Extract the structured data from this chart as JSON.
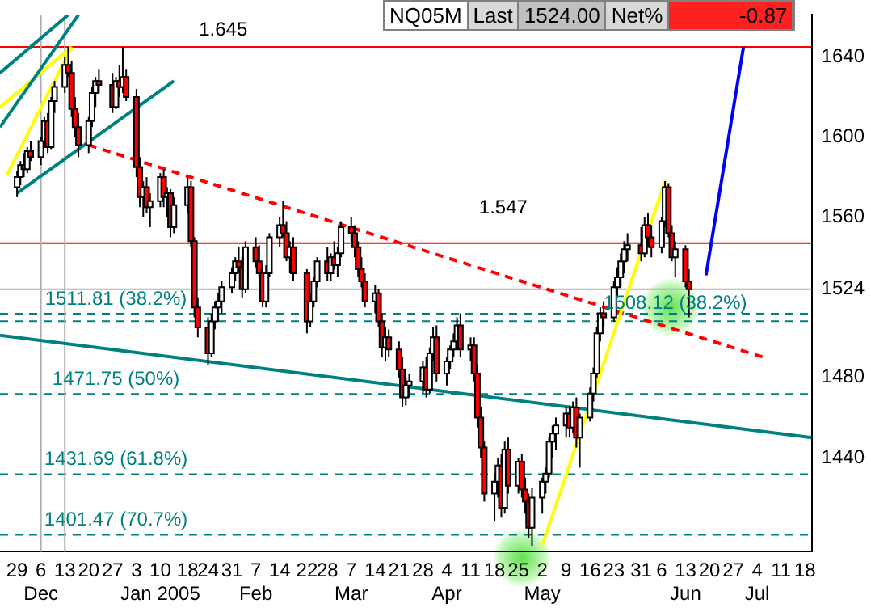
{
  "chart_data": {
    "type": "candlestick",
    "x": [
      "2004-11-29",
      "2004-11-30",
      "2004-12-01",
      "2004-12-02",
      "2004-12-03",
      "2004-12-06",
      "2004-12-07",
      "2004-12-08",
      "2004-12-09",
      "2004-12-10",
      "2004-12-13",
      "2004-12-14",
      "2004-12-15",
      "2004-12-16",
      "2004-12-17",
      "2004-12-20",
      "2004-12-21",
      "2004-12-22",
      "2004-12-23",
      "2004-12-27",
      "2004-12-28",
      "2004-12-29",
      "2004-12-30",
      "2004-12-31",
      "2005-01-03",
      "2005-01-04",
      "2005-01-05",
      "2005-01-06",
      "2005-01-07",
      "2005-01-10",
      "2005-01-11",
      "2005-01-12",
      "2005-01-13",
      "2005-01-14",
      "2005-01-18",
      "2005-01-19",
      "2005-01-20",
      "2005-01-21",
      "2005-01-24",
      "2005-01-25",
      "2005-01-26",
      "2005-01-27",
      "2005-01-28",
      "2005-01-31",
      "2005-02-01",
      "2005-02-02",
      "2005-02-03",
      "2005-02-04",
      "2005-02-07",
      "2005-02-08",
      "2005-02-09",
      "2005-02-10",
      "2005-02-11",
      "2005-02-14",
      "2005-02-15",
      "2005-02-16",
      "2005-02-17",
      "2005-02-18",
      "2005-02-22",
      "2005-02-23",
      "2005-02-24",
      "2005-02-25",
      "2005-02-28",
      "2005-03-01",
      "2005-03-02",
      "2005-03-03",
      "2005-03-04",
      "2005-03-07",
      "2005-03-08",
      "2005-03-09",
      "2005-03-10",
      "2005-03-11",
      "2005-03-14",
      "2005-03-15",
      "2005-03-16",
      "2005-03-17",
      "2005-03-18",
      "2005-03-21",
      "2005-03-22",
      "2005-03-23",
      "2005-03-24",
      "2005-03-28",
      "2005-03-29",
      "2005-03-30",
      "2005-03-31",
      "2005-04-01",
      "2005-04-04",
      "2005-04-05",
      "2005-04-06",
      "2005-04-07",
      "2005-04-08",
      "2005-04-11",
      "2005-04-12",
      "2005-04-13",
      "2005-04-14",
      "2005-04-15",
      "2005-04-18",
      "2005-04-19",
      "2005-04-20",
      "2005-04-21",
      "2005-04-22",
      "2005-04-25",
      "2005-04-26",
      "2005-04-27",
      "2005-04-28",
      "2005-04-29",
      "2005-05-02",
      "2005-05-03",
      "2005-05-04",
      "2005-05-05",
      "2005-05-06",
      "2005-05-09",
      "2005-05-10",
      "2005-05-11",
      "2005-05-12",
      "2005-05-13",
      "2005-05-16",
      "2005-05-17",
      "2005-05-18",
      "2005-05-19",
      "2005-05-20",
      "2005-05-23",
      "2005-05-24",
      "2005-05-25",
      "2005-05-26",
      "2005-05-27",
      "2005-05-31",
      "2005-06-01",
      "2005-06-02",
      "2005-06-03",
      "2005-06-06",
      "2005-06-07",
      "2005-06-08",
      "2005-06-09",
      "2005-06-10",
      "2005-06-13",
      "2005-06-14"
    ],
    "ohlc": [
      [
        1575,
        1583,
        1570,
        1580
      ],
      [
        1580,
        1588,
        1576,
        1586
      ],
      [
        1586,
        1592,
        1580,
        1584
      ],
      [
        1584,
        1595,
        1582,
        1593
      ],
      [
        1593,
        1598,
        1588,
        1590
      ],
      [
        1590,
        1600,
        1586,
        1598
      ],
      [
        1598,
        1610,
        1596,
        1608
      ],
      [
        1608,
        1612,
        1592,
        1595
      ],
      [
        1595,
        1620,
        1594,
        1618
      ],
      [
        1618,
        1628,
        1612,
        1625
      ],
      [
        1625,
        1640,
        1622,
        1636
      ],
      [
        1636,
        1645,
        1630,
        1632
      ],
      [
        1632,
        1638,
        1610,
        1614
      ],
      [
        1614,
        1620,
        1600,
        1605
      ],
      [
        1605,
        1612,
        1590,
        1596
      ],
      [
        1596,
        1610,
        1592,
        1608
      ],
      [
        1608,
        1625,
        1605,
        1622
      ],
      [
        1622,
        1630,
        1615,
        1628
      ],
      [
        1628,
        1634,
        1622,
        1626
      ],
      [
        1626,
        1632,
        1612,
        1615
      ],
      [
        1615,
        1630,
        1614,
        1628
      ],
      [
        1628,
        1636,
        1620,
        1625
      ],
      [
        1625,
        1645,
        1622,
        1630
      ],
      [
        1630,
        1634,
        1618,
        1620
      ],
      [
        1620,
        1624,
        1580,
        1585
      ],
      [
        1585,
        1590,
        1565,
        1570
      ],
      [
        1570,
        1578,
        1560,
        1575
      ],
      [
        1575,
        1580,
        1562,
        1565
      ],
      [
        1565,
        1572,
        1555,
        1568
      ],
      [
        1568,
        1582,
        1565,
        1580
      ],
      [
        1580,
        1584,
        1565,
        1570
      ],
      [
        1570,
        1575,
        1560,
        1572
      ],
      [
        1572,
        1574,
        1550,
        1555
      ],
      [
        1555,
        1570,
        1552,
        1566
      ],
      [
        1566,
        1580,
        1562,
        1575
      ],
      [
        1575,
        1578,
        1545,
        1548
      ],
      [
        1548,
        1550,
        1510,
        1515
      ],
      [
        1515,
        1520,
        1500,
        1505
      ],
      [
        1505,
        1510,
        1486,
        1492
      ],
      [
        1492,
        1512,
        1490,
        1508
      ],
      [
        1508,
        1518,
        1504,
        1515
      ],
      [
        1515,
        1522,
        1508,
        1518
      ],
      [
        1518,
        1528,
        1512,
        1525
      ],
      [
        1525,
        1535,
        1522,
        1532
      ],
      [
        1532,
        1540,
        1528,
        1538
      ],
      [
        1538,
        1545,
        1532,
        1535
      ],
      [
        1535,
        1540,
        1520,
        1524
      ],
      [
        1524,
        1548,
        1522,
        1545
      ],
      [
        1545,
        1550,
        1535,
        1538
      ],
      [
        1538,
        1546,
        1530,
        1532
      ],
      [
        1532,
        1536,
        1515,
        1518
      ],
      [
        1518,
        1536,
        1515,
        1532
      ],
      [
        1532,
        1552,
        1530,
        1550
      ],
      [
        1550,
        1560,
        1545,
        1556
      ],
      [
        1556,
        1568,
        1550,
        1552
      ],
      [
        1552,
        1558,
        1538,
        1540
      ],
      [
        1540,
        1548,
        1532,
        1545
      ],
      [
        1545,
        1550,
        1528,
        1532
      ],
      [
        1532,
        1534,
        1502,
        1508
      ],
      [
        1508,
        1522,
        1505,
        1518
      ],
      [
        1518,
        1530,
        1515,
        1528
      ],
      [
        1528,
        1540,
        1525,
        1538
      ],
      [
        1538,
        1545,
        1528,
        1532
      ],
      [
        1532,
        1542,
        1528,
        1540
      ],
      [
        1540,
        1548,
        1534,
        1536
      ],
      [
        1536,
        1545,
        1530,
        1542
      ],
      [
        1542,
        1558,
        1540,
        1555
      ],
      [
        1555,
        1560,
        1548,
        1552
      ],
      [
        1552,
        1556,
        1540,
        1545
      ],
      [
        1545,
        1548,
        1530,
        1534
      ],
      [
        1534,
        1540,
        1525,
        1528
      ],
      [
        1528,
        1532,
        1515,
        1518
      ],
      [
        1518,
        1526,
        1512,
        1522
      ],
      [
        1522,
        1524,
        1505,
        1508
      ],
      [
        1508,
        1512,
        1490,
        1495
      ],
      [
        1495,
        1505,
        1488,
        1500
      ],
      [
        1500,
        1504,
        1490,
        1494
      ],
      [
        1494,
        1498,
        1480,
        1484
      ],
      [
        1484,
        1490,
        1465,
        1470
      ],
      [
        1470,
        1480,
        1466,
        1476
      ],
      [
        1476,
        1482,
        1470,
        1478
      ],
      [
        1478,
        1488,
        1472,
        1485
      ],
      [
        1485,
        1490,
        1470,
        1474
      ],
      [
        1474,
        1495,
        1472,
        1492
      ],
      [
        1492,
        1505,
        1488,
        1500
      ],
      [
        1500,
        1506,
        1478,
        1482
      ],
      [
        1482,
        1490,
        1476,
        1488
      ],
      [
        1488,
        1496,
        1484,
        1494
      ],
      [
        1494,
        1502,
        1490,
        1498
      ],
      [
        1498,
        1510,
        1494,
        1506
      ],
      [
        1506,
        1512,
        1490,
        1494
      ],
      [
        1494,
        1500,
        1488,
        1496
      ],
      [
        1496,
        1500,
        1478,
        1482
      ],
      [
        1482,
        1486,
        1455,
        1460
      ],
      [
        1460,
        1465,
        1440,
        1445
      ],
      [
        1445,
        1448,
        1418,
        1422
      ],
      [
        1422,
        1432,
        1408,
        1428
      ],
      [
        1428,
        1440,
        1420,
        1436
      ],
      [
        1436,
        1442,
        1410,
        1415
      ],
      [
        1415,
        1448,
        1412,
        1444
      ],
      [
        1444,
        1450,
        1422,
        1426
      ],
      [
        1426,
        1440,
        1422,
        1438
      ],
      [
        1438,
        1442,
        1420,
        1424
      ],
      [
        1424,
        1430,
        1412,
        1418
      ],
      [
        1418,
        1422,
        1400,
        1405
      ],
      [
        1405,
        1425,
        1396,
        1420
      ],
      [
        1420,
        1430,
        1412,
        1428
      ],
      [
        1428,
        1435,
        1422,
        1432
      ],
      [
        1432,
        1450,
        1430,
        1448
      ],
      [
        1448,
        1456,
        1440,
        1452
      ],
      [
        1452,
        1460,
        1444,
        1456
      ],
      [
        1456,
        1465,
        1450,
        1462
      ],
      [
        1462,
        1466,
        1450,
        1455
      ],
      [
        1455,
        1468,
        1452,
        1465
      ],
      [
        1465,
        1470,
        1445,
        1450
      ],
      [
        1450,
        1462,
        1435,
        1460
      ],
      [
        1460,
        1475,
        1458,
        1472
      ],
      [
        1472,
        1485,
        1468,
        1482
      ],
      [
        1482,
        1505,
        1480,
        1502
      ],
      [
        1502,
        1515,
        1498,
        1512
      ],
      [
        1512,
        1518,
        1505,
        1510
      ],
      [
        1510,
        1528,
        1508,
        1525
      ],
      [
        1525,
        1535,
        1520,
        1530
      ],
      [
        1530,
        1542,
        1525,
        1538
      ],
      [
        1538,
        1548,
        1532,
        1544
      ],
      [
        1544,
        1552,
        1538,
        1546
      ],
      [
        1546,
        1555,
        1538,
        1542
      ],
      [
        1542,
        1560,
        1540,
        1556
      ],
      [
        1556,
        1562,
        1545,
        1550
      ],
      [
        1550,
        1556,
        1540,
        1545
      ],
      [
        1545,
        1560,
        1542,
        1558
      ],
      [
        1558,
        1578,
        1555,
        1575
      ],
      [
        1575,
        1577,
        1550,
        1552
      ],
      [
        1552,
        1556,
        1538,
        1540
      ],
      [
        1540,
        1548,
        1530,
        1544
      ],
      [
        1544,
        1546,
        1525,
        1528
      ],
      [
        1528,
        1534,
        1510,
        1524
      ]
    ],
    "series": [
      {
        "type": "line",
        "x": [
          "2004-11-24",
          "2005-07-20"
        ],
        "values": [
          1501,
          1450
        ],
        "color": "#008080",
        "line_style": "solid"
      },
      {
        "type": "line",
        "x": [
          "2004-11-24",
          "2004-12-14"
        ],
        "values": [
          1632,
          1661
        ],
        "color": "#008080",
        "line_style": "solid"
      },
      {
        "type": "line",
        "x": [
          "2004-11-24",
          "2004-12-17"
        ],
        "values": [
          1605,
          1661
        ],
        "color": "#008080",
        "line_style": "solid"
      },
      {
        "type": "line",
        "x": [
          "2004-11-29",
          "2005-01-14"
        ],
        "values": [
          1572,
          1628
        ],
        "color": "#008080",
        "line_style": "solid"
      },
      {
        "type": "line",
        "x": [
          "2004-11-24",
          "2004-12-15"
        ],
        "values": [
          1615,
          1645
        ],
        "color": "#ffff00",
        "line_style": "solid"
      },
      {
        "type": "line",
        "x": [
          "2004-11-26",
          "2004-12-15"
        ],
        "values": [
          1581,
          1645
        ],
        "color": "#ffff00",
        "line_style": "solid"
      },
      {
        "type": "line",
        "x": [
          "2005-05-02",
          "2005-06-07"
        ],
        "values": [
          1396,
          1578
        ],
        "color": "#ffff00",
        "line_style": "solid"
      },
      {
        "type": "line",
        "x": [
          "2004-12-20",
          "2005-07-06"
        ],
        "values": [
          1596,
          1490
        ],
        "color": "#ff0000",
        "line_style": "dashed"
      },
      {
        "type": "line",
        "x": [
          "2005-06-19",
          "2005-06-30"
        ],
        "values": [
          1531,
          1645
        ],
        "color": "#0000ff",
        "line_style": "solid"
      }
    ],
    "ref_lines": [
      {
        "axis": "y",
        "value": 1645,
        "color": "#ff0000",
        "line_style": "solid"
      },
      {
        "axis": "y",
        "value": 1547,
        "color": "#ff0000",
        "line_style": "solid"
      },
      {
        "axis": "y",
        "value": 1524,
        "color": "#b0b0b0",
        "line_style": "solid"
      },
      {
        "axis": "y",
        "value": 1511.81,
        "color": "#008080",
        "line_style": "dashed"
      },
      {
        "axis": "y",
        "value": 1508.12,
        "color": "#008080",
        "line_style": "dashed"
      },
      {
        "axis": "y",
        "value": 1471.75,
        "color": "#008080",
        "line_style": "dashed"
      },
      {
        "axis": "y",
        "value": 1431.69,
        "color": "#008080",
        "line_style": "dashed"
      },
      {
        "axis": "y",
        "value": 1401.47,
        "color": "#008080",
        "line_style": "dashed"
      },
      {
        "axis": "x",
        "value": "2004-12-06",
        "color": "#b0b0b0",
        "line_style": "solid"
      },
      {
        "axis": "x",
        "value": "2004-12-13",
        "color": "#b0b0b0",
        "line_style": "solid"
      }
    ],
    "annotations": [
      "NQ05M",
      "Last",
      "1524.00",
      "Net%",
      "-0.87",
      "1.645",
      "1.547",
      {
        "text": "1511.81 (38.2%)",
        "x": "2004-12-28",
        "y": 1514
      },
      {
        "text": "1508.12 (38.2%)",
        "x": "2005-06-10",
        "y": 1512
      },
      {
        "text": "1471.75 (50%)",
        "x": "2004-12-28",
        "y": 1474
      },
      {
        "text": "1431.69 (61.8%)",
        "x": "2004-12-28",
        "y": 1434
      },
      {
        "text": "1401.47 (70.7%)",
        "x": "2004-12-28",
        "y": 1404
      }
    ],
    "xlim": [
      "2004-11-24",
      "2005-07-20"
    ],
    "ylim": [
      1393,
      1661
    ],
    "yticks": [
      1440,
      1480,
      {
        "value": 1524,
        "label": "1524"
      },
      1560,
      1600,
      1640
    ],
    "xticks": [
      {
        "value": "2004-11-29",
        "label": "29"
      },
      {
        "value": "2004-12-06",
        "label": "6\nDec"
      },
      {
        "value": "2004-12-13",
        "label": "13"
      },
      {
        "value": "2004-12-20",
        "label": "20"
      },
      {
        "value": "2004-12-27",
        "label": "27"
      },
      {
        "value": "2005-01-03",
        "label": "3"
      },
      {
        "value": "2005-01-10",
        "label": "10\nJan 2005"
      },
      {
        "value": "2005-01-18",
        "label": "18"
      },
      {
        "value": "2005-01-24",
        "label": "24"
      },
      {
        "value": "2005-01-31",
        "label": "31"
      },
      {
        "value": "2005-02-07",
        "label": "7\nFeb"
      },
      {
        "value": "2005-02-14",
        "label": "14"
      },
      {
        "value": "2005-02-22",
        "label": "22"
      },
      {
        "value": "2005-02-28",
        "label": "28"
      },
      {
        "value": "2005-03-07",
        "label": "7\nMar"
      },
      {
        "value": "2005-03-14",
        "label": "14"
      },
      {
        "value": "2005-03-21",
        "label": "21"
      },
      {
        "value": "2005-03-28",
        "label": "28"
      },
      {
        "value": "2005-04-04",
        "label": "4\nApr"
      },
      {
        "value": "2005-04-11",
        "label": "11"
      },
      {
        "value": "2005-04-18",
        "label": "18"
      },
      {
        "value": "2005-04-25",
        "label": "25"
      },
      {
        "value": "2005-05-02",
        "label": "2\nMay"
      },
      {
        "value": "2005-05-09",
        "label": "9"
      },
      {
        "value": "2005-05-16",
        "label": "16"
      },
      {
        "value": "2005-05-23",
        "label": "23"
      },
      {
        "value": "2005-05-31",
        "label": "31"
      },
      {
        "value": "2005-06-06",
        "label": "6"
      },
      {
        "value": "2005-06-13",
        "label": "13\nJun"
      },
      {
        "value": "2005-06-20",
        "label": "20"
      },
      {
        "value": "2005-06-27",
        "label": "27"
      },
      {
        "value": "2005-07-04",
        "label": "4\nJul"
      },
      {
        "value": "2005-07-11",
        "label": "11"
      },
      {
        "value": "2005-07-18",
        "label": "18"
      }
    ],
    "grid": false,
    "legend": false
  }
}
